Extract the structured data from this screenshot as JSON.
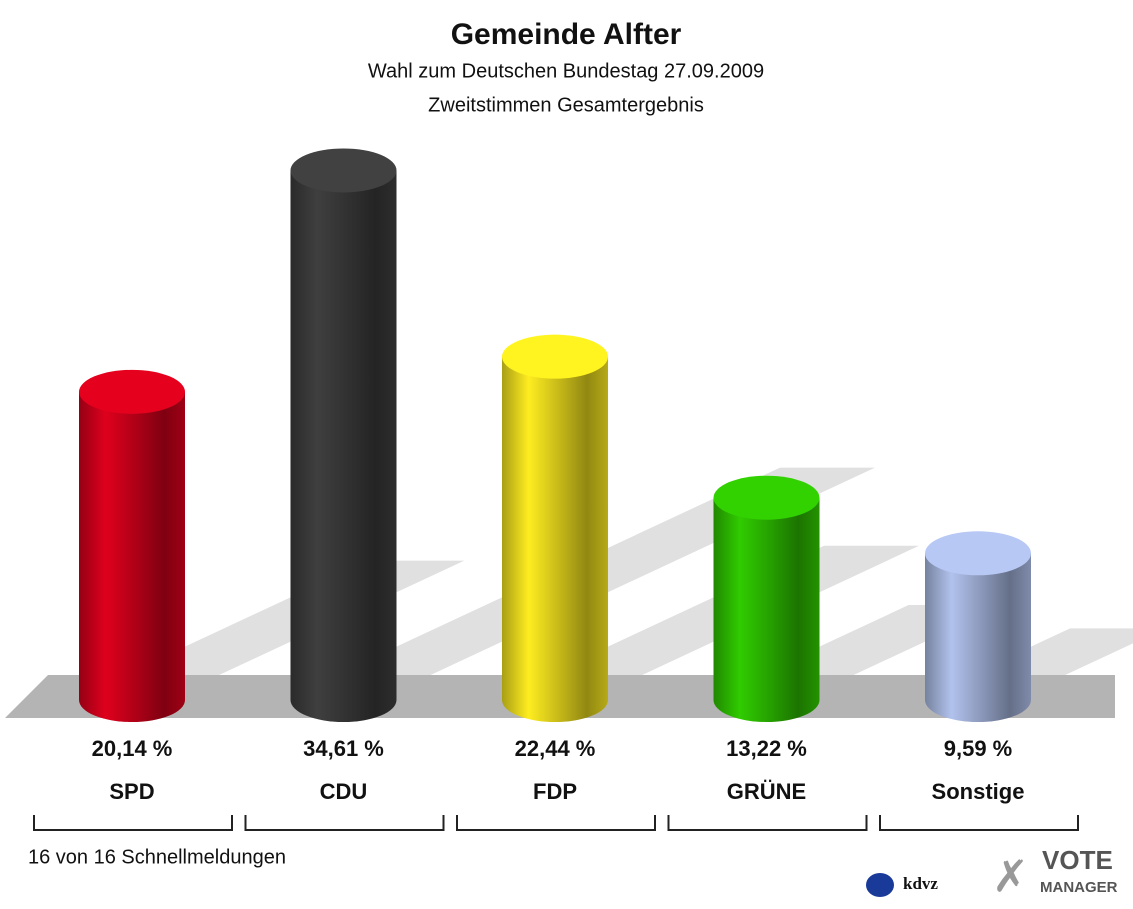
{
  "chart_data": {
    "type": "bar",
    "title": "Gemeinde Alfter",
    "subtitle": [
      "Wahl zum Deutschen Bundestag 27.09.2009",
      "Zweitstimmen Gesamtergebnis"
    ],
    "categories": [
      "SPD",
      "CDU",
      "FDP",
      "GRÜNE",
      "Sonstige"
    ],
    "values": [
      20.14,
      34.61,
      22.44,
      13.22,
      9.59
    ],
    "value_labels": [
      "20,14 %",
      "34,61 %",
      "22,44 %",
      "13,22 %",
      "9,59 %"
    ],
    "colors": [
      "#d4001c",
      "#3c3c3c",
      "#f2e21e",
      "#2ec200",
      "#a9b9e2"
    ],
    "note": "16 von 16 Schnellmeldungen",
    "logo_texts": [
      "kdvz",
      "VOTE",
      "MANAGER"
    ]
  }
}
